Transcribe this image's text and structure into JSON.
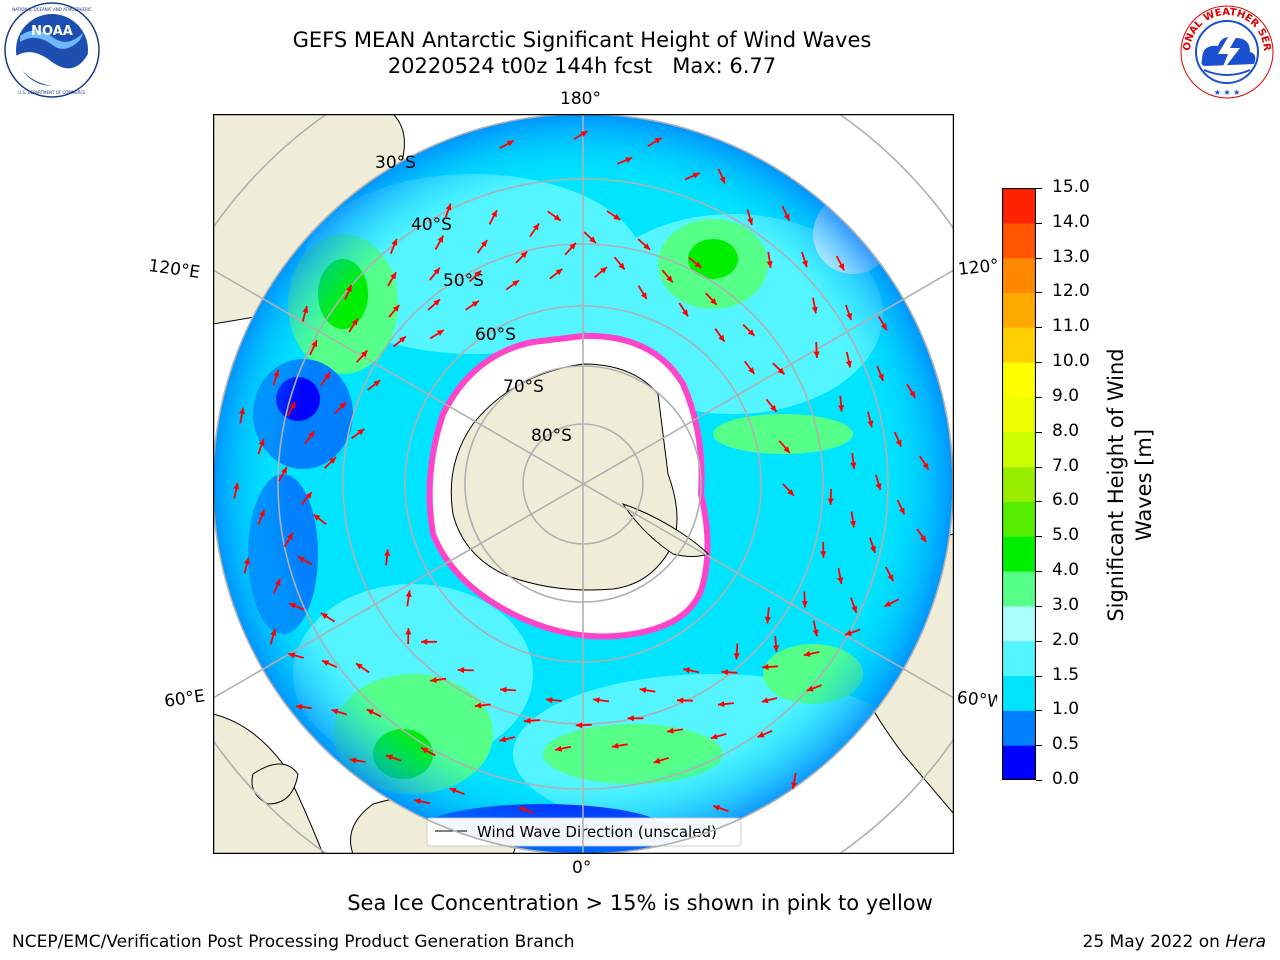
{
  "title": {
    "line1": "GEFS MEAN Antarctic Significant Height of Wind Waves",
    "line2": "20220524 t00z 144h fcst   Max: 6.77"
  },
  "map": {
    "projection": "south-polar-stereographic",
    "longitude_labels": {
      "top": "180°",
      "bottom": "0°",
      "left_upper": "120°E",
      "left_lower": "60°E",
      "right_upper": "120°",
      "right_lower": "60°W"
    },
    "latitude_labels": [
      "30°S",
      "40°S",
      "50°S",
      "60°S",
      "70°S",
      "80°S"
    ],
    "legend": "Wind Wave Direction (unscaled)",
    "colors": {
      "land": "#efedd8",
      "ice": "#ffffff",
      "ice_edge": "#ff44cc",
      "arrow": "#ff0000",
      "grid": "#b0b0b0"
    }
  },
  "colorbar": {
    "label": "Significant Height of Wind Waves [m]",
    "label_line1": "Significant Height of Wind",
    "label_line2": "Waves [m]",
    "ticks": [
      "15.0",
      "14.0",
      "13.0",
      "12.0",
      "11.0",
      "10.0",
      "9.0",
      "8.0",
      "7.0",
      "6.0",
      "5.0",
      "4.0",
      "3.0",
      "2.0",
      "1.5",
      "1.0",
      "0.5",
      "0.0"
    ],
    "colors_bottom_to_top": [
      "#0000ff",
      "#0080ff",
      "#00e5ff",
      "#55f5ff",
      "#aaffff",
      "#55ff88",
      "#00ee00",
      "#55ee00",
      "#99ee00",
      "#ccff00",
      "#eeff00",
      "#ffff00",
      "#ffd000",
      "#ffaa00",
      "#ff8800",
      "#ff5500",
      "#ff2200"
    ]
  },
  "caption": "Sea Ice Concentration > 15% is shown in pink to yellow",
  "footer": {
    "left": "NCEP/EMC/Verification Post Processing Product Generation Branch",
    "right_prefix": "25 May 2022 on ",
    "right_italic": "Hera"
  },
  "logos": {
    "left": "NOAA",
    "right": "NATIONAL WEATHER SERVICE"
  }
}
